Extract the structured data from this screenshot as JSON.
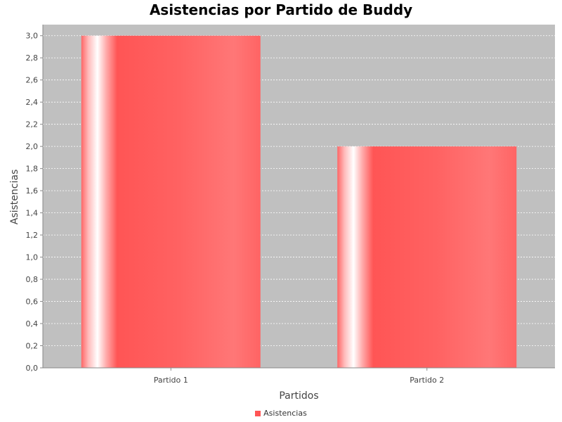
{
  "chart_data": {
    "type": "bar",
    "title": "Asistencias por Partido de Buddy",
    "xlabel": "Partidos",
    "ylabel": "Asistencias",
    "categories": [
      "Partido 1",
      "Partido 2"
    ],
    "series": [
      {
        "name": "Asistencias",
        "values": [
          3.0,
          2.0
        ],
        "color": "#ff5555"
      }
    ],
    "ylim": [
      0,
      3.1
    ],
    "yticks": [
      "0,0",
      "0,2",
      "0,4",
      "0,6",
      "0,8",
      "1,0",
      "1,2",
      "1,4",
      "1,6",
      "1,8",
      "2,0",
      "2,2",
      "2,4",
      "2,6",
      "2,8",
      "3,0"
    ],
    "grid": true,
    "legend_position": "bottom",
    "plot_background": "#c0c0c0"
  }
}
